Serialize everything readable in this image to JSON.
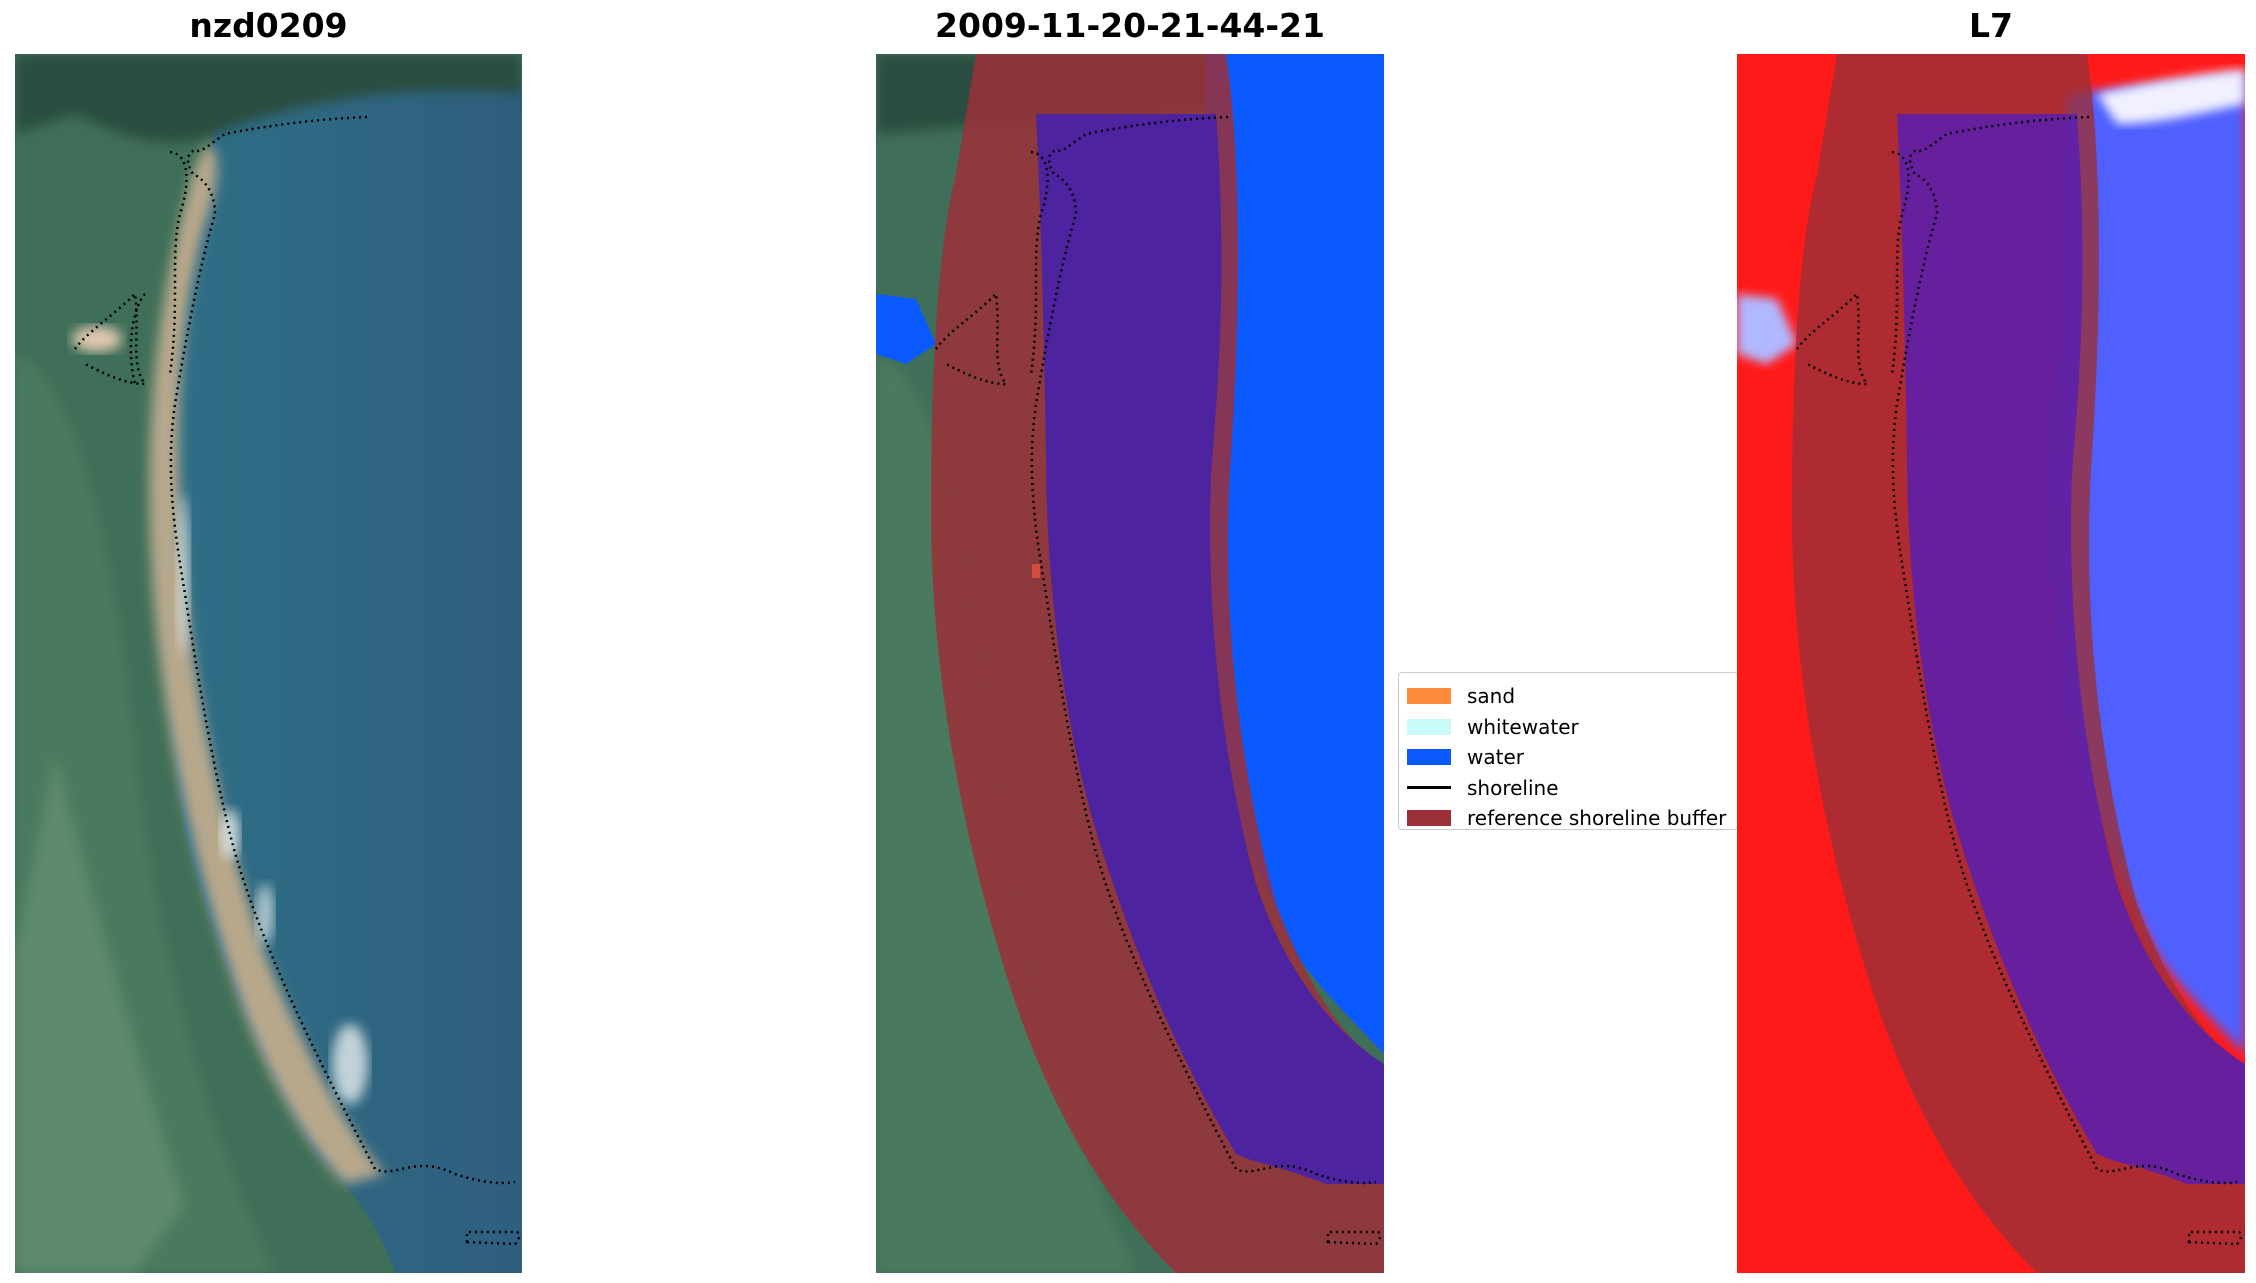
{
  "panels": [
    {
      "title": "nzd0209"
    },
    {
      "title": "2009-11-20-21-44-21"
    },
    {
      "title": "L7"
    }
  ],
  "legend": {
    "items": [
      {
        "label": "sand",
        "color": "#ff8c3a",
        "kind": "patch"
      },
      {
        "label": "whitewater",
        "color": "#c8fafa",
        "kind": "patch"
      },
      {
        "label": "water",
        "color": "#0a5aff",
        "kind": "patch"
      },
      {
        "label": "shoreline",
        "color": "#000000",
        "kind": "line"
      },
      {
        "label": "reference shoreline buffer",
        "color": "#9b3038",
        "kind": "patch"
      }
    ]
  },
  "colors": {
    "land_green": "#4f7d5c",
    "sea_blue": "#2f6f8f",
    "beach_sand": "#b7a88c",
    "classified_water": "#0a5aff",
    "buffer_red": "#9b3038",
    "overlay_purple": "#4e23a0",
    "index_red": "#ff1a1a",
    "index_blue": "#5060ff"
  }
}
